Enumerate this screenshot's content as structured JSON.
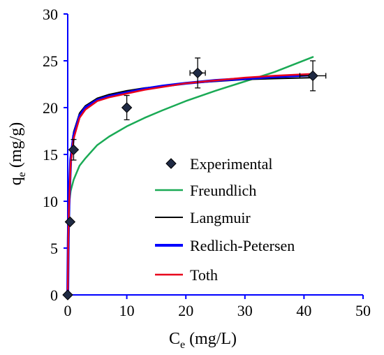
{
  "chart_data": {
    "type": "scatter",
    "title": "",
    "xlabel": {
      "main": "C",
      "sub": "e",
      "rest": " (mg/L)"
    },
    "ylabel": {
      "main": "q",
      "sub": "e",
      "rest": " (mg/g)"
    },
    "xlim": [
      0,
      50
    ],
    "ylim": [
      0,
      30
    ],
    "xticks": [
      0,
      10,
      20,
      30,
      40,
      50
    ],
    "yticks": [
      0,
      5,
      10,
      15,
      20,
      25,
      30
    ],
    "grid": false,
    "legend_position": "center-right",
    "colors": {
      "axis": "#0000ff",
      "marker_fill": "#1f2a44",
      "freundlich": "#1aaa55",
      "langmuir": "#000000",
      "redlich_peterson": "#0000ff",
      "toth": "#e8001c"
    },
    "experimental": {
      "name": "Experimental",
      "marker": "diamond",
      "points": [
        {
          "x": 0.0,
          "y": 0.0,
          "xerr": 0.0,
          "yerr": 0.0
        },
        {
          "x": 0.4,
          "y": 7.8,
          "xerr": 0.0,
          "yerr": 0.0
        },
        {
          "x": 1.0,
          "y": 15.5,
          "xerr": 0.0,
          "yerr": 1.1
        },
        {
          "x": 10.0,
          "y": 20.0,
          "xerr": 0.0,
          "yerr": 1.3
        },
        {
          "x": 22.0,
          "y": 23.7,
          "xerr": 1.3,
          "yerr": 1.6
        },
        {
          "x": 41.5,
          "y": 23.4,
          "xerr": 2.2,
          "yerr": 1.6
        }
      ]
    },
    "series": [
      {
        "name": "Freundlich",
        "x": [
          0,
          0.1,
          0.2,
          0.5,
          1,
          2,
          3,
          5,
          7,
          10,
          13,
          16,
          20,
          25,
          30,
          35,
          41.5
        ],
        "y": [
          0,
          8.6,
          9.6,
          11.1,
          12.3,
          13.8,
          14.6,
          16.0,
          16.9,
          18.0,
          18.9,
          19.7,
          20.7,
          21.8,
          22.8,
          23.8,
          25.4
        ]
      },
      {
        "name": "Langmuir",
        "x": [
          0,
          0.1,
          0.2,
          0.5,
          1,
          2,
          3,
          5,
          7,
          10,
          13,
          16,
          20,
          25,
          30,
          35,
          41.5
        ],
        "y": [
          0,
          6.5,
          9.9,
          14.9,
          17.4,
          19.4,
          20.2,
          21.0,
          21.4,
          21.8,
          22.1,
          22.3,
          22.6,
          22.8,
          23.0,
          23.1,
          23.2
        ]
      },
      {
        "name": "Redlich-Petersen",
        "x": [
          0,
          0.1,
          0.2,
          0.5,
          1,
          2,
          3,
          5,
          7,
          10,
          13,
          16,
          20,
          25,
          30,
          35,
          41.5
        ],
        "y": [
          0,
          6.0,
          9.5,
          14.4,
          17.0,
          19.1,
          20.0,
          20.8,
          21.2,
          21.6,
          22.0,
          22.3,
          22.6,
          22.9,
          23.1,
          23.3,
          23.5
        ]
      },
      {
        "name": "Toth",
        "x": [
          0,
          0.1,
          0.2,
          0.5,
          1,
          2,
          3,
          5,
          7,
          10,
          13,
          16,
          20,
          25,
          30,
          35,
          41.5
        ],
        "y": [
          0,
          5.8,
          9.2,
          14.0,
          16.7,
          18.9,
          19.8,
          20.7,
          21.1,
          21.5,
          21.9,
          22.2,
          22.6,
          22.9,
          23.2,
          23.4,
          23.6
        ]
      }
    ]
  }
}
